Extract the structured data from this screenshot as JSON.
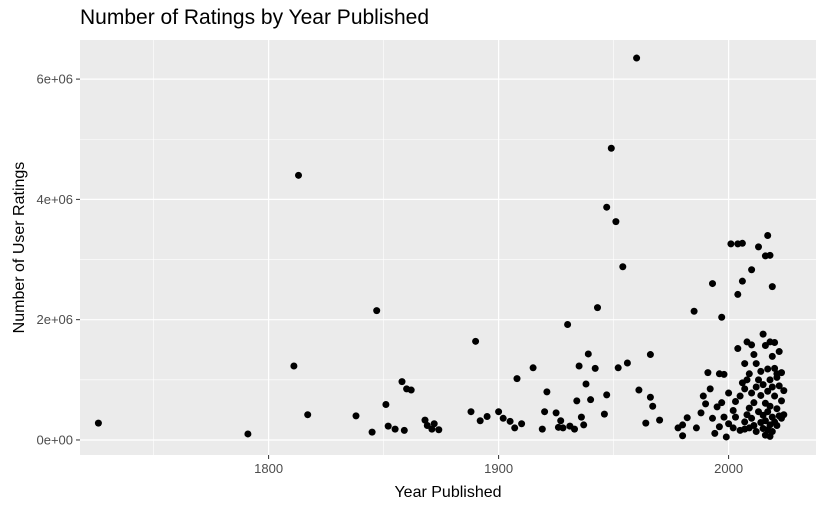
{
  "chart_data": {
    "type": "scatter",
    "title": "Number of Ratings by Year Published",
    "xlabel": "Year Published",
    "ylabel": "Number of User Ratings",
    "xlim": [
      1718,
      2038
    ],
    "ylim": [
      -250000,
      6650000
    ],
    "x_ticks": [
      1800,
      1900,
      2000
    ],
    "x_tick_labels": [
      "1800",
      "1900",
      "2000"
    ],
    "y_ticks": [
      0,
      2000000,
      4000000,
      6000000
    ],
    "y_tick_labels": [
      "0e+00",
      "2e+06",
      "4e+06",
      "6e+06"
    ],
    "grid": true,
    "legend": "none",
    "colors": {
      "panel": "#ebebeb",
      "grid_major": "#ffffff",
      "point": "#000000"
    },
    "points": [
      [
        1726,
        280000
      ],
      [
        1791,
        100000
      ],
      [
        1811,
        1230000
      ],
      [
        1813,
        4400000
      ],
      [
        1817,
        420000
      ],
      [
        1838,
        400000
      ],
      [
        1845,
        130000
      ],
      [
        1847,
        2150000
      ],
      [
        1851,
        590000
      ],
      [
        1852,
        230000
      ],
      [
        1855,
        180000
      ],
      [
        1858,
        970000
      ],
      [
        1859,
        160000
      ],
      [
        1860,
        850000
      ],
      [
        1862,
        830000
      ],
      [
        1868,
        330000
      ],
      [
        1869,
        240000
      ],
      [
        1871,
        180000
      ],
      [
        1872,
        270000
      ],
      [
        1874,
        170000
      ],
      [
        1888,
        470000
      ],
      [
        1890,
        1640000
      ],
      [
        1892,
        320000
      ],
      [
        1895,
        390000
      ],
      [
        1900,
        470000
      ],
      [
        1902,
        360000
      ],
      [
        1905,
        310000
      ],
      [
        1907,
        200000
      ],
      [
        1908,
        1020000
      ],
      [
        1910,
        270000
      ],
      [
        1915,
        1200000
      ],
      [
        1919,
        180000
      ],
      [
        1920,
        470000
      ],
      [
        1921,
        800000
      ],
      [
        1925,
        450000
      ],
      [
        1926,
        210000
      ],
      [
        1927,
        320000
      ],
      [
        1928,
        200000
      ],
      [
        1930,
        1920000
      ],
      [
        1931,
        230000
      ],
      [
        1933,
        180000
      ],
      [
        1934,
        650000
      ],
      [
        1935,
        1230000
      ],
      [
        1936,
        380000
      ],
      [
        1937,
        250000
      ],
      [
        1938,
        930000
      ],
      [
        1939,
        1430000
      ],
      [
        1940,
        670000
      ],
      [
        1942,
        1190000
      ],
      [
        1943,
        2200000
      ],
      [
        1946,
        430000
      ],
      [
        1947,
        750000
      ],
      [
        1947,
        3870000
      ],
      [
        1949,
        4850000
      ],
      [
        1951,
        3630000
      ],
      [
        1952,
        1200000
      ],
      [
        1954,
        2880000
      ],
      [
        1956,
        1280000
      ],
      [
        1960,
        6350000
      ],
      [
        1961,
        830000
      ],
      [
        1964,
        280000
      ],
      [
        1966,
        1420000
      ],
      [
        1966,
        710000
      ],
      [
        1967,
        560000
      ],
      [
        1970,
        330000
      ],
      [
        1978,
        200000
      ],
      [
        1980,
        70000
      ],
      [
        1980,
        250000
      ],
      [
        1982,
        370000
      ],
      [
        1985,
        2140000
      ],
      [
        1986,
        200000
      ],
      [
        1988,
        450000
      ],
      [
        1989,
        730000
      ],
      [
        1990,
        600000
      ],
      [
        1991,
        1120000
      ],
      [
        1992,
        850000
      ],
      [
        1993,
        360000
      ],
      [
        1993,
        2600000
      ],
      [
        1994,
        110000
      ],
      [
        1995,
        550000
      ],
      [
        1996,
        1100000
      ],
      [
        1996,
        220000
      ],
      [
        1997,
        2040000
      ],
      [
        1997,
        620000
      ],
      [
        1998,
        1090000
      ],
      [
        1998,
        380000
      ],
      [
        1999,
        50000
      ],
      [
        2000,
        780000
      ],
      [
        2000,
        270000
      ],
      [
        2001,
        3260000
      ],
      [
        2002,
        490000
      ],
      [
        2002,
        200000
      ],
      [
        2003,
        380000
      ],
      [
        2003,
        640000
      ],
      [
        2004,
        2420000
      ],
      [
        2004,
        1520000
      ],
      [
        2004,
        3260000
      ],
      [
        2005,
        160000
      ],
      [
        2005,
        730000
      ],
      [
        2006,
        2640000
      ],
      [
        2006,
        3270000
      ],
      [
        2006,
        950000
      ],
      [
        2007,
        1270000
      ],
      [
        2007,
        850000
      ],
      [
        2007,
        300000
      ],
      [
        2007,
        180000
      ],
      [
        2008,
        1630000
      ],
      [
        2008,
        1000000
      ],
      [
        2008,
        420000
      ],
      [
        2009,
        1100000
      ],
      [
        2009,
        530000
      ],
      [
        2009,
        200000
      ],
      [
        2010,
        2830000
      ],
      [
        2010,
        1580000
      ],
      [
        2010,
        780000
      ],
      [
        2010,
        360000
      ],
      [
        2011,
        1420000
      ],
      [
        2011,
        620000
      ],
      [
        2011,
        240000
      ],
      [
        2012,
        1270000
      ],
      [
        2012,
        880000
      ],
      [
        2012,
        140000
      ],
      [
        2013,
        3210000
      ],
      [
        2013,
        470000
      ],
      [
        2013,
        1000000
      ],
      [
        2014,
        740000
      ],
      [
        2014,
        290000
      ],
      [
        2014,
        1140000
      ],
      [
        2015,
        1760000
      ],
      [
        2015,
        410000
      ],
      [
        2015,
        190000
      ],
      [
        2015,
        920000
      ],
      [
        2016,
        3060000
      ],
      [
        2016,
        1570000
      ],
      [
        2016,
        610000
      ],
      [
        2016,
        320000
      ],
      [
        2016,
        80000
      ],
      [
        2017,
        3400000
      ],
      [
        2017,
        1180000
      ],
      [
        2017,
        810000
      ],
      [
        2017,
        470000
      ],
      [
        2017,
        170000
      ],
      [
        2018,
        3070000
      ],
      [
        2018,
        1630000
      ],
      [
        2018,
        1000000
      ],
      [
        2018,
        560000
      ],
      [
        2018,
        250000
      ],
      [
        2018,
        60000
      ],
      [
        2019,
        2550000
      ],
      [
        2019,
        1390000
      ],
      [
        2019,
        880000
      ],
      [
        2019,
        380000
      ],
      [
        2019,
        140000
      ],
      [
        2020,
        1190000
      ],
      [
        2020,
        730000
      ],
      [
        2020,
        300000
      ],
      [
        2020,
        1620000
      ],
      [
        2021,
        1040000
      ],
      [
        2021,
        520000
      ],
      [
        2021,
        240000
      ],
      [
        2021,
        1100000
      ],
      [
        2022,
        1470000
      ],
      [
        2022,
        900000
      ],
      [
        2022,
        400000
      ],
      [
        2023,
        1120000
      ],
      [
        2023,
        650000
      ],
      [
        2023,
        360000
      ],
      [
        2024,
        820000
      ],
      [
        2024,
        420000
      ]
    ]
  }
}
